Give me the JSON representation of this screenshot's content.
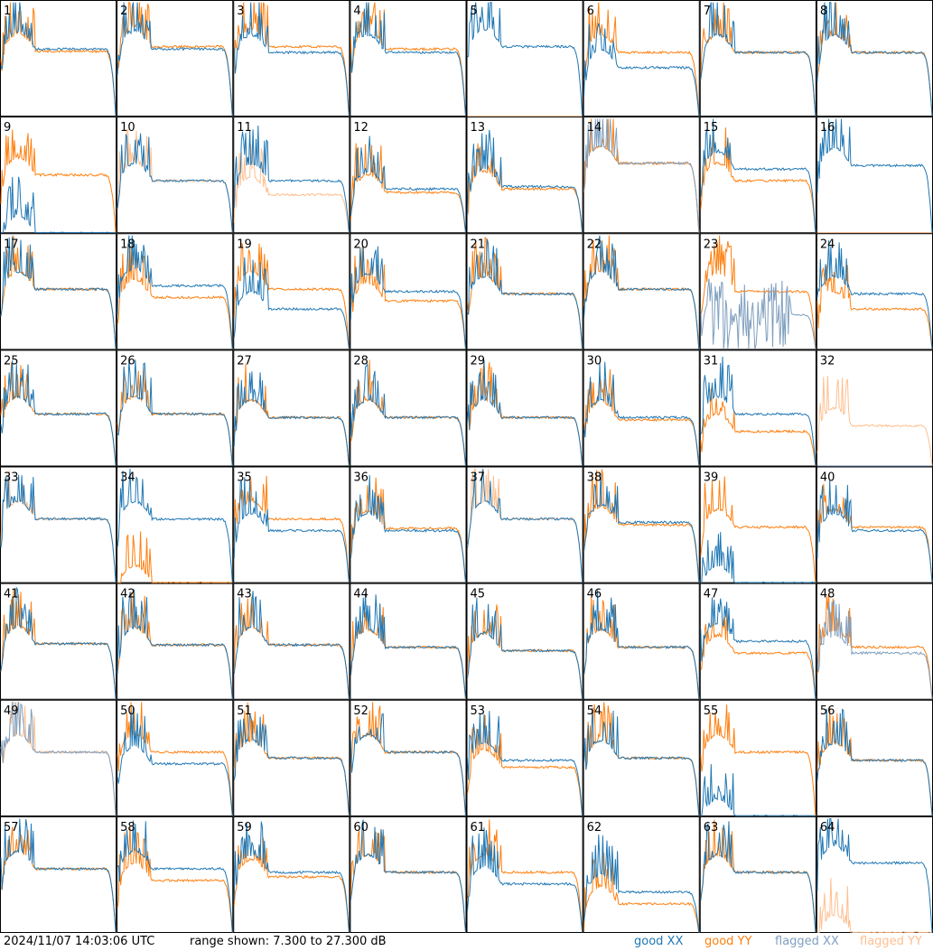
{
  "chart_data": {
    "type": "line",
    "layout": "8x8 small multiples, one panel per antenna",
    "ylim_db": [
      7.3,
      27.3
    ],
    "colors": {
      "good_xx": "#1f77b4",
      "good_yy": "#ff7f0e",
      "flagged_xx": "#7f9fbf",
      "flagged_yy": "#ffbf8f"
    },
    "legend": {
      "good_xx": "good XX",
      "good_yy": "good YY",
      "flagged_xx": "flagged XX",
      "flagged_yy": "flagged YY"
    },
    "panel_labels": [
      "1",
      "2",
      "3",
      "4",
      "5",
      "6",
      "7",
      "8",
      "9",
      "10",
      "11",
      "12",
      "13",
      "14",
      "15",
      "16",
      "17",
      "18",
      "19",
      "20",
      "21",
      "22",
      "23",
      "24",
      "25",
      "26",
      "27",
      "28",
      "29",
      "30",
      "31",
      "32",
      "33",
      "34",
      "35",
      "36",
      "37",
      "38",
      "39",
      "40",
      "41",
      "42",
      "43",
      "44",
      "45",
      "46",
      "47",
      "48",
      "49",
      "50",
      "51",
      "52",
      "53",
      "54",
      "55",
      "56",
      "57",
      "58",
      "59",
      "60",
      "61",
      "62",
      "63",
      "64"
    ],
    "panels": [
      {
        "id": 1,
        "xx": "good",
        "yy": "good",
        "xx_level": 0.58,
        "yy_level": 0.56
      },
      {
        "id": 2,
        "xx": "good",
        "yy": "good",
        "xx_level": 0.58,
        "yy_level": 0.6
      },
      {
        "id": 3,
        "xx": "good",
        "yy": "good",
        "xx_level": 0.55,
        "yy_level": 0.6
      },
      {
        "id": 4,
        "xx": "good",
        "yy": "good",
        "xx_level": 0.55,
        "yy_level": 0.58
      },
      {
        "id": 5,
        "xx": "good",
        "yy": "flat",
        "xx_level": 0.6,
        "yy_level": 0.0,
        "note": "wild XX"
      },
      {
        "id": 6,
        "xx": "good",
        "yy": "good",
        "xx_level": 0.42,
        "yy_level": 0.55,
        "note": "dip"
      },
      {
        "id": 7,
        "xx": "good",
        "yy": "good",
        "xx_level": 0.55,
        "yy_level": 0.55
      },
      {
        "id": 8,
        "xx": "good",
        "yy": "good",
        "xx_level": 0.55,
        "yy_level": 0.55
      },
      {
        "id": 9,
        "xx": "good",
        "yy": "good",
        "xx_level": 0.0,
        "yy_level": 0.5,
        "note": "XX spikes from bottom"
      },
      {
        "id": 10,
        "xx": "good",
        "yy": "flagged",
        "xx_level": 0.45,
        "yy_level": 0.45
      },
      {
        "id": 11,
        "xx": "good",
        "yy": "flagged",
        "xx_level": 0.45,
        "yy_level": 0.33
      },
      {
        "id": 12,
        "xx": "good",
        "yy": "good",
        "xx_level": 0.38,
        "yy_level": 0.35
      },
      {
        "id": 13,
        "xx": "good",
        "yy": "good",
        "xx_level": 0.4,
        "yy_level": 0.38
      },
      {
        "id": 14,
        "xx": "flagged",
        "yy": "good",
        "xx_level": 0.6,
        "yy_level": 0.6
      },
      {
        "id": 15,
        "xx": "good",
        "yy": "good",
        "xx_level": 0.55,
        "yy_level": 0.45
      },
      {
        "id": 16,
        "xx": "good",
        "yy": "flat",
        "xx_level": 0.58,
        "yy_level": 0.0
      },
      {
        "id": 17,
        "xx": "good",
        "yy": "good",
        "xx_level": 0.52,
        "yy_level": 0.52
      },
      {
        "id": 18,
        "xx": "good",
        "yy": "good",
        "xx_level": 0.55,
        "yy_level": 0.45
      },
      {
        "id": 19,
        "xx": "good",
        "yy": "good",
        "xx_level": 0.35,
        "yy_level": 0.52
      },
      {
        "id": 20,
        "xx": "good",
        "yy": "good",
        "xx_level": 0.5,
        "yy_level": 0.42
      },
      {
        "id": 21,
        "xx": "good",
        "yy": "good",
        "xx_level": 0.48,
        "yy_level": 0.48
      },
      {
        "id": 22,
        "xx": "good",
        "yy": "good",
        "xx_level": 0.52,
        "yy_level": 0.52
      },
      {
        "id": 23,
        "xx": "flagged",
        "yy": "good",
        "xx_level": 0.3,
        "yy_level": 0.5,
        "note": "noisy XX"
      },
      {
        "id": 24,
        "xx": "good",
        "yy": "good",
        "xx_level": 0.48,
        "yy_level": 0.35
      },
      {
        "id": 25,
        "xx": "good",
        "yy": "good",
        "xx_level": 0.45,
        "yy_level": 0.45
      },
      {
        "id": 26,
        "xx": "good",
        "yy": "good",
        "xx_level": 0.45,
        "yy_level": 0.45
      },
      {
        "id": 27,
        "xx": "good",
        "yy": "good",
        "xx_level": 0.42,
        "yy_level": 0.42
      },
      {
        "id": 28,
        "xx": "good",
        "yy": "good",
        "xx_level": 0.42,
        "yy_level": 0.42
      },
      {
        "id": 29,
        "xx": "good",
        "yy": "good",
        "xx_level": 0.42,
        "yy_level": 0.42
      },
      {
        "id": 30,
        "xx": "good",
        "yy": "good",
        "xx_level": 0.42,
        "yy_level": 0.4
      },
      {
        "id": 31,
        "xx": "good",
        "yy": "good",
        "xx_level": 0.45,
        "yy_level": 0.3
      },
      {
        "id": 32,
        "xx": "flat",
        "yy": "flagged",
        "xx_level": 0.0,
        "yy_level": 0.35
      },
      {
        "id": 33,
        "xx": "good",
        "yy": "flagged",
        "xx_level": 0.55,
        "yy_level": 0.55
      },
      {
        "id": 34,
        "xx": "good",
        "yy": "good",
        "xx_level": 0.55,
        "yy_level": 0.0,
        "note": "YY spikes"
      },
      {
        "id": 35,
        "xx": "good",
        "yy": "good",
        "xx_level": 0.45,
        "yy_level": 0.55
      },
      {
        "id": 36,
        "xx": "good",
        "yy": "good",
        "xx_level": 0.45,
        "yy_level": 0.47
      },
      {
        "id": 37,
        "xx": "good",
        "yy": "flagged",
        "xx_level": 0.55,
        "yy_level": 0.55
      },
      {
        "id": 38,
        "xx": "good",
        "yy": "good",
        "xx_level": 0.52,
        "yy_level": 0.5
      },
      {
        "id": 39,
        "xx": "good",
        "yy": "good",
        "xx_level": 0.0,
        "yy_level": 0.48
      },
      {
        "id": 40,
        "xx": "good",
        "yy": "good",
        "xx_level": 0.45,
        "yy_level": 0.48
      },
      {
        "id": 41,
        "xx": "good",
        "yy": "good",
        "xx_level": 0.48,
        "yy_level": 0.48
      },
      {
        "id": 42,
        "xx": "good",
        "yy": "good",
        "xx_level": 0.47,
        "yy_level": 0.47
      },
      {
        "id": 43,
        "xx": "good",
        "yy": "good",
        "xx_level": 0.47,
        "yy_level": 0.47
      },
      {
        "id": 44,
        "xx": "good",
        "yy": "good",
        "xx_level": 0.45,
        "yy_level": 0.45
      },
      {
        "id": 45,
        "xx": "good",
        "yy": "good",
        "xx_level": 0.42,
        "yy_level": 0.42
      },
      {
        "id": 46,
        "xx": "good",
        "yy": "good",
        "xx_level": 0.45,
        "yy_level": 0.45
      },
      {
        "id": 47,
        "xx": "good",
        "yy": "good",
        "xx_level": 0.5,
        "yy_level": 0.4
      },
      {
        "id": 48,
        "xx": "flagged",
        "yy": "good",
        "xx_level": 0.4,
        "yy_level": 0.45
      },
      {
        "id": 49,
        "xx": "flagged",
        "yy": "flagged",
        "xx_level": 0.55,
        "yy_level": 0.55
      },
      {
        "id": 50,
        "xx": "good",
        "yy": "good",
        "xx_level": 0.45,
        "yy_level": 0.55
      },
      {
        "id": 51,
        "xx": "good",
        "yy": "good",
        "xx_level": 0.5,
        "yy_level": 0.5
      },
      {
        "id": 52,
        "xx": "good",
        "yy": "good",
        "xx_level": 0.55,
        "yy_level": 0.55
      },
      {
        "id": 53,
        "xx": "good",
        "yy": "good",
        "xx_level": 0.48,
        "yy_level": 0.42
      },
      {
        "id": 54,
        "xx": "good",
        "yy": "good",
        "xx_level": 0.5,
        "yy_level": 0.5
      },
      {
        "id": 55,
        "xx": "good",
        "yy": "good",
        "xx_level": 0.0,
        "yy_level": 0.55,
        "note": "XX bursts"
      },
      {
        "id": 56,
        "xx": "good",
        "yy": "good",
        "xx_level": 0.48,
        "yy_level": 0.48
      },
      {
        "id": 57,
        "xx": "good",
        "yy": "good",
        "xx_level": 0.55,
        "yy_level": 0.55
      },
      {
        "id": 58,
        "xx": "good",
        "yy": "good",
        "xx_level": 0.55,
        "yy_level": 0.45
      },
      {
        "id": 59,
        "xx": "good",
        "yy": "good",
        "xx_level": 0.52,
        "yy_level": 0.48
      },
      {
        "id": 60,
        "xx": "good",
        "yy": "good",
        "xx_level": 0.52,
        "yy_level": 0.52
      },
      {
        "id": 61,
        "xx": "good",
        "yy": "good",
        "xx_level": 0.42,
        "yy_level": 0.52
      },
      {
        "id": 62,
        "xx": "good",
        "yy": "good",
        "xx_level": 0.35,
        "yy_level": 0.25
      },
      {
        "id": 63,
        "xx": "good",
        "yy": "good",
        "xx_level": 0.52,
        "yy_level": 0.52
      },
      {
        "id": 64,
        "xx": "good",
        "yy": "flagged",
        "xx_level": 0.6,
        "yy_level": 0.0
      }
    ]
  },
  "footer": {
    "timestamp": "2024/11/07 14:03:06 UTC",
    "range": "range shown: 7.300 to 27.300 dB"
  }
}
